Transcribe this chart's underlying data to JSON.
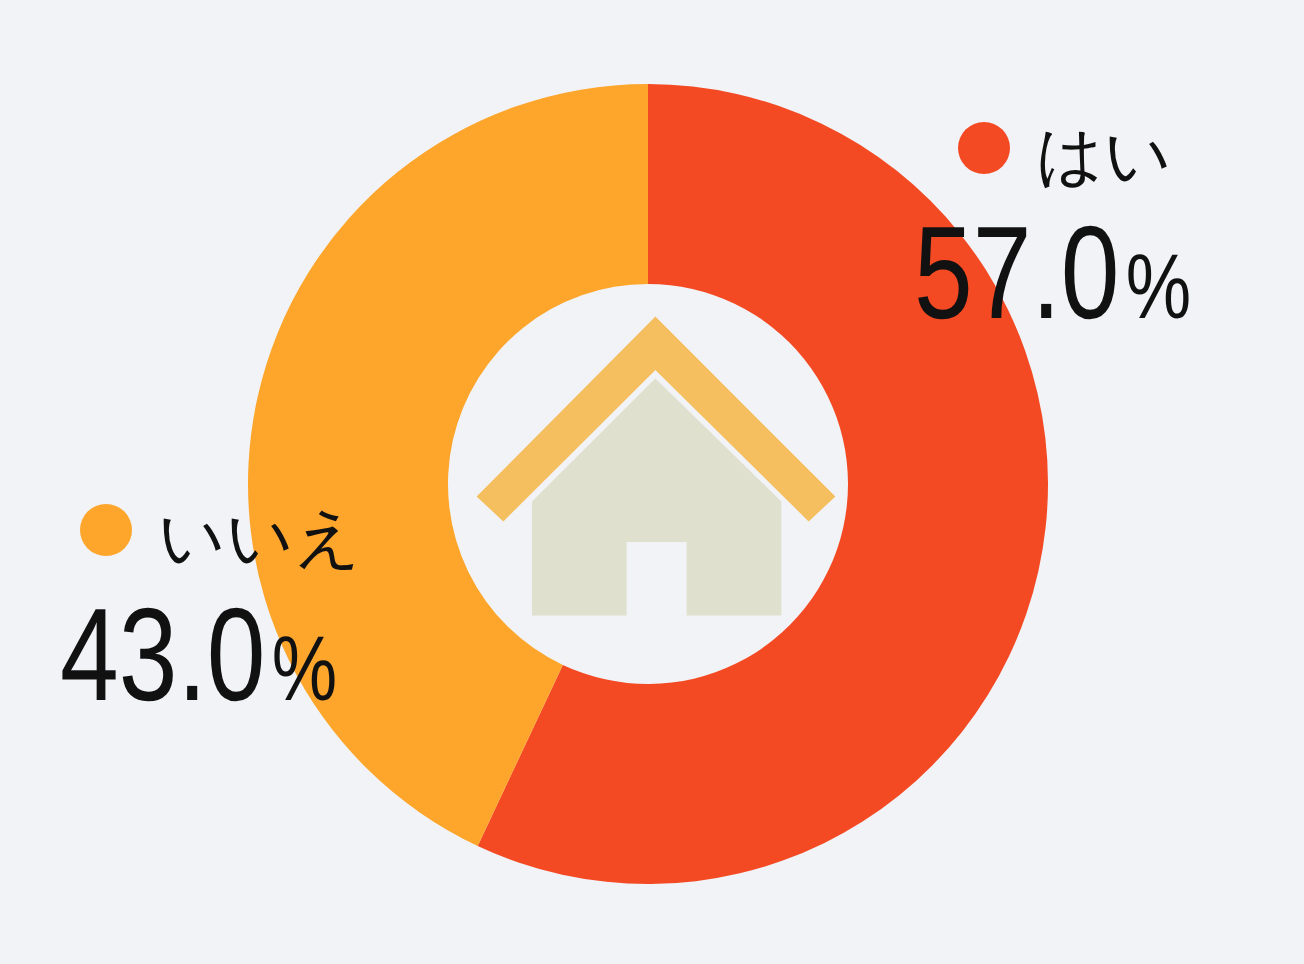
{
  "chart_data": {
    "type": "donut",
    "categories": [
      "はい",
      "いいえ"
    ],
    "values": [
      57.0,
      43.0
    ],
    "colors": [
      "#f44a24",
      "#fda62b"
    ],
    "value_labels": [
      "57.0%",
      "43.0%"
    ],
    "legend": "top right"
  }
}
